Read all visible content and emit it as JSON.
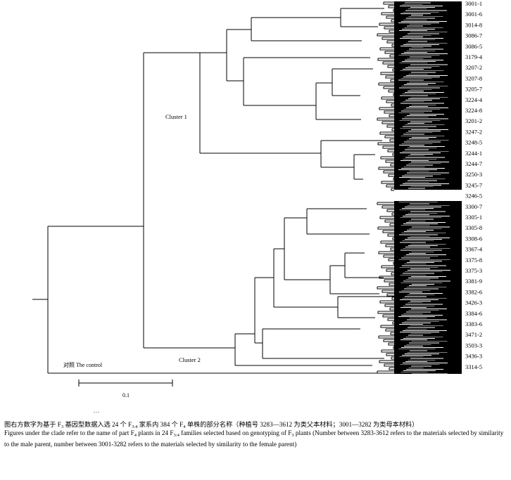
{
  "figure": {
    "type": "dendrogram",
    "cluster_labels": [
      "Cluster 1",
      "Cluster 2"
    ],
    "control_label": "对照 The control",
    "scale_bar_label": "0.1",
    "leaf_labels": [
      "3001-1",
      "3001-6",
      "3014-8",
      "3086-7",
      "3086-5",
      "3179-4",
      "3207-2",
      "3207-8",
      "3205-7",
      "3224-4",
      "3224-8",
      "3201-2",
      "3247-2",
      "3248-5",
      "3244-1",
      "3244-7",
      "3250-3",
      "3245-7",
      "3246-5",
      "3300-7",
      "3305-1",
      "3305-8",
      "3308-6",
      "3367-4",
      "3375-8",
      "3375-3",
      "3381-9",
      "3382-6",
      "3426-3",
      "3384-6",
      "3383-6",
      "3471-2",
      "3503-3",
      "3436-3",
      "3314-5"
    ]
  },
  "caption": {
    "dots": "...",
    "zh": {
      "p1": "图右方数字为基于 F",
      "s1": "3",
      "p2": " 基因型数据入选 24 个 F",
      "s2": "3:4",
      "p3": " 家系内 384 个 F",
      "s3": "4",
      "p4": " 单株的部分名称（种植号 3283—3612 为类父本材料；3001—3282 为类母本材料）"
    },
    "en": {
      "p1": "Figures under the clade refer to the name of part F",
      "s1": "4",
      "p2": " plants in 24 F",
      "s2": "3:4",
      "p3": " families selected based on genotyping of F",
      "s3": "3",
      "p4": " plants (Number between 3283-3612 refers to the materials selected by similarity to the male parent, number between 3001-3282 refers to the materials selected by similarity to the female parent)"
    }
  }
}
